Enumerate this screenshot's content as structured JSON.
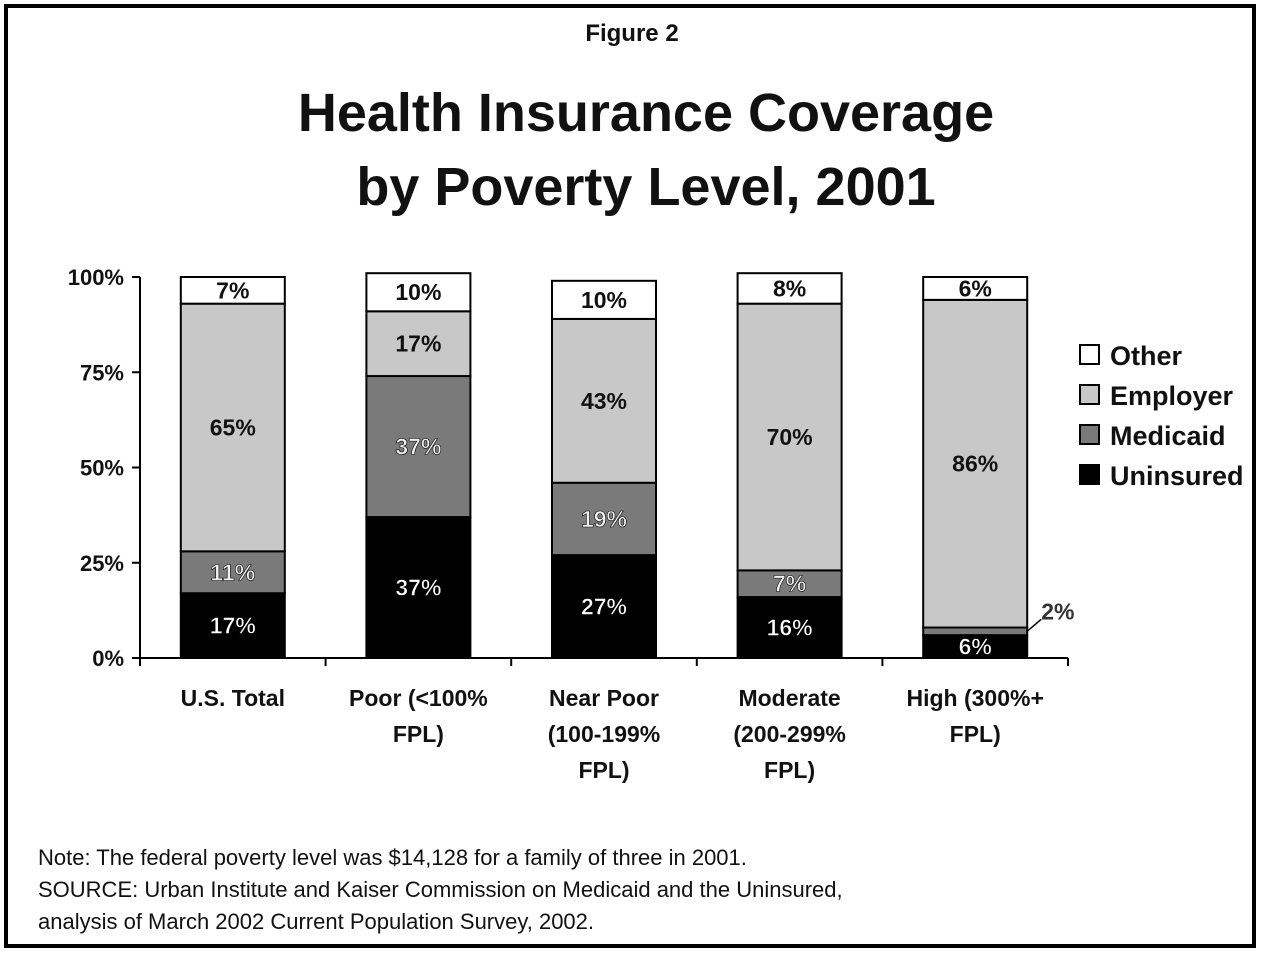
{
  "figure_label": "Figure 2",
  "title_lines": [
    "Health Insurance Coverage",
    "by Poverty Level, 2001"
  ],
  "note_lines": [
    "Note: The federal poverty level was $14,128 for a family of three in 2001.",
    "SOURCE: Urban Institute and Kaiser Commission on Medicaid and the Uninsured,",
    "analysis of March 2002 Current Population Survey, 2002."
  ],
  "colors": {
    "Uninsured": "#000000",
    "Medicaid": "#7a7a7a",
    "Employer": "#c8c8c8",
    "Other": "#ffffff"
  },
  "chart_data": {
    "type": "bar",
    "stacked": true,
    "categories": [
      [
        "U.S. Total"
      ],
      [
        "Poor (<100%",
        "FPL)"
      ],
      [
        "Near Poor",
        "(100-199%",
        "FPL)"
      ],
      [
        "Moderate",
        "(200-299%",
        "FPL)"
      ],
      [
        "High (300%+",
        "FPL)"
      ]
    ],
    "series": [
      {
        "name": "Uninsured",
        "values": [
          17,
          37,
          27,
          16,
          6
        ],
        "labels": [
          "17%",
          "37%",
          "27%",
          "16%",
          "6%"
        ]
      },
      {
        "name": "Medicaid",
        "values": [
          11,
          37,
          19,
          7,
          2
        ],
        "labels": [
          "11%",
          "37%",
          "19%",
          "7%",
          "2%"
        ]
      },
      {
        "name": "Employer",
        "values": [
          65,
          17,
          43,
          70,
          86
        ],
        "labels": [
          "65%",
          "17%",
          "43%",
          "70%",
          "86%"
        ]
      },
      {
        "name": "Other",
        "values": [
          7,
          10,
          10,
          8,
          6
        ],
        "labels": [
          "7%",
          "10%",
          "10%",
          "8%",
          "6%"
        ]
      }
    ],
    "legend_order": [
      "Other",
      "Employer",
      "Medicaid",
      "Uninsured"
    ],
    "legend_position": "right",
    "ylim": [
      0,
      100
    ],
    "yticks": [
      0,
      25,
      50,
      75,
      100
    ],
    "ytick_labels": [
      "0%",
      "25%",
      "50%",
      "75%",
      "100%"
    ],
    "grid": false
  }
}
